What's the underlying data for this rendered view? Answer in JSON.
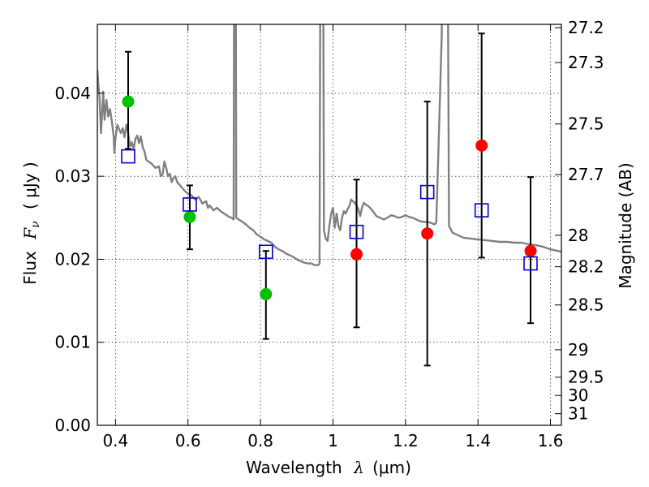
{
  "chart_data": {
    "type": "scatter",
    "xlabel": "Wavelength",
    "xlabel_symbol": "λ",
    "xlabel_unit": "(μm)",
    "ylabel": "Flux",
    "ylabel_symbol": "F",
    "ylabel_subscript": "ν",
    "ylabel_unit": "( μJy )",
    "y2label": "Magnitude (AB)",
    "xlim": [
      0.35,
      1.63
    ],
    "ylim": [
      0.0,
      0.0483
    ],
    "grid": true,
    "x_ticks": [
      {
        "value": 0.4,
        "label": "0.4"
      },
      {
        "value": 0.6,
        "label": "0.6"
      },
      {
        "value": 0.8,
        "label": "0.8"
      },
      {
        "value": 1.0,
        "label": "1"
      },
      {
        "value": 1.2,
        "label": "1.2"
      },
      {
        "value": 1.4,
        "label": "1.4"
      },
      {
        "value": 1.6,
        "label": "1.6"
      }
    ],
    "y_ticks": [
      {
        "value": 0.0,
        "label": "0.00"
      },
      {
        "value": 0.01,
        "label": "0.01"
      },
      {
        "value": 0.02,
        "label": "0.02"
      },
      {
        "value": 0.03,
        "label": "0.03"
      },
      {
        "value": 0.04,
        "label": "0.04"
      }
    ],
    "y2_ticks": [
      {
        "flux": 0.0479,
        "label": "27.2"
      },
      {
        "flux": 0.0437,
        "label": "27.3"
      },
      {
        "flux": 0.0363,
        "label": "27.5"
      },
      {
        "flux": 0.0302,
        "label": "27.7"
      },
      {
        "flux": 0.0229,
        "label": "28"
      },
      {
        "flux": 0.0191,
        "label": "28.2"
      },
      {
        "flux": 0.0145,
        "label": "28.5"
      },
      {
        "flux": 0.0091,
        "label": "29"
      },
      {
        "flux": 0.0058,
        "label": "29.5"
      },
      {
        "flux": 0.0036,
        "label": "30"
      },
      {
        "flux": 0.0014,
        "label": "31"
      }
    ],
    "series": [
      {
        "name": "model SED",
        "kind": "line",
        "color": "#808080",
        "points": [
          [
            0.35,
            0.0428
          ],
          [
            0.353,
            0.041
          ],
          [
            0.356,
            0.0395
          ],
          [
            0.36,
            0.0352
          ],
          [
            0.363,
            0.0374
          ],
          [
            0.366,
            0.0402
          ],
          [
            0.37,
            0.0368
          ],
          [
            0.375,
            0.0392
          ],
          [
            0.38,
            0.0372
          ],
          [
            0.385,
            0.0381
          ],
          [
            0.39,
            0.0366
          ],
          [
            0.395,
            0.0348
          ],
          [
            0.397,
            0.0328
          ],
          [
            0.4,
            0.0345
          ],
          [
            0.405,
            0.0362
          ],
          [
            0.41,
            0.0357
          ],
          [
            0.415,
            0.0352
          ],
          [
            0.42,
            0.0358
          ],
          [
            0.425,
            0.0347
          ],
          [
            0.43,
            0.0362
          ],
          [
            0.435,
            0.0352
          ],
          [
            0.44,
            0.0336
          ],
          [
            0.445,
            0.0341
          ],
          [
            0.45,
            0.0332
          ],
          [
            0.455,
            0.0345
          ],
          [
            0.46,
            0.0349
          ],
          [
            0.465,
            0.034
          ],
          [
            0.47,
            0.0348
          ],
          [
            0.475,
            0.0335
          ],
          [
            0.48,
            0.033
          ],
          [
            0.485,
            0.032
          ],
          [
            0.49,
            0.0318
          ],
          [
            0.5,
            0.0315
          ],
          [
            0.51,
            0.031
          ],
          [
            0.52,
            0.0312
          ],
          [
            0.525,
            0.03
          ],
          [
            0.53,
            0.0302
          ],
          [
            0.535,
            0.0318
          ],
          [
            0.54,
            0.031
          ],
          [
            0.545,
            0.03
          ],
          [
            0.55,
            0.0303
          ],
          [
            0.555,
            0.0293
          ],
          [
            0.56,
            0.0298
          ],
          [
            0.565,
            0.03
          ],
          [
            0.57,
            0.0293
          ],
          [
            0.58,
            0.0288
          ],
          [
            0.59,
            0.0283
          ],
          [
            0.6,
            0.0279
          ],
          [
            0.61,
            0.0277
          ],
          [
            0.62,
            0.0272
          ],
          [
            0.63,
            0.0275
          ],
          [
            0.64,
            0.0267
          ],
          [
            0.65,
            0.027
          ],
          [
            0.655,
            0.0262
          ],
          [
            0.66,
            0.0265
          ],
          [
            0.67,
            0.0259
          ],
          [
            0.68,
            0.0262
          ],
          [
            0.69,
            0.0258
          ],
          [
            0.7,
            0.0255
          ],
          [
            0.71,
            0.0252
          ],
          [
            0.72,
            0.025
          ],
          [
            0.726,
            0.0248
          ],
          [
            0.728,
            0.072
          ],
          [
            0.731,
            0.072
          ],
          [
            0.733,
            0.025
          ],
          [
            0.74,
            0.0248
          ],
          [
            0.75,
            0.0245
          ],
          [
            0.76,
            0.0242
          ],
          [
            0.77,
            0.0238
          ],
          [
            0.78,
            0.0235
          ],
          [
            0.79,
            0.023
          ],
          [
            0.8,
            0.0227
          ],
          [
            0.81,
            0.0224
          ],
          [
            0.82,
            0.0222
          ],
          [
            0.83,
            0.022
          ],
          [
            0.84,
            0.0215
          ],
          [
            0.85,
            0.0212
          ],
          [
            0.86,
            0.021
          ],
          [
            0.87,
            0.0207
          ],
          [
            0.88,
            0.0205
          ],
          [
            0.89,
            0.0203
          ],
          [
            0.9,
            0.02
          ],
          [
            0.91,
            0.0198
          ],
          [
            0.92,
            0.0196
          ],
          [
            0.93,
            0.0195
          ],
          [
            0.94,
            0.0195
          ],
          [
            0.95,
            0.0193
          ],
          [
            0.96,
            0.0193
          ],
          [
            0.963,
            0.0195
          ],
          [
            0.966,
            0.072
          ],
          [
            0.972,
            0.072
          ],
          [
            0.975,
            0.0235
          ],
          [
            0.98,
            0.0225
          ],
          [
            0.985,
            0.0222
          ],
          [
            0.99,
            0.024
          ],
          [
            0.995,
            0.0255
          ],
          [
            1.0,
            0.0262
          ],
          [
            1.005,
            0.0238
          ],
          [
            1.01,
            0.0255
          ],
          [
            1.015,
            0.024
          ],
          [
            1.02,
            0.0235
          ],
          [
            1.025,
            0.025
          ],
          [
            1.03,
            0.0258
          ],
          [
            1.035,
            0.0255
          ],
          [
            1.04,
            0.026
          ],
          [
            1.045,
            0.0264
          ],
          [
            1.05,
            0.0272
          ],
          [
            1.055,
            0.027
          ],
          [
            1.06,
            0.0268
          ],
          [
            1.065,
            0.0265
          ],
          [
            1.07,
            0.026
          ],
          [
            1.075,
            0.0252
          ],
          [
            1.08,
            0.0262
          ],
          [
            1.085,
            0.0268
          ],
          [
            1.09,
            0.0266
          ],
          [
            1.1,
            0.0263
          ],
          [
            1.11,
            0.0258
          ],
          [
            1.12,
            0.0252
          ],
          [
            1.13,
            0.025
          ],
          [
            1.14,
            0.0248
          ],
          [
            1.15,
            0.025
          ],
          [
            1.16,
            0.0253
          ],
          [
            1.17,
            0.0252
          ],
          [
            1.18,
            0.025
          ],
          [
            1.19,
            0.0251
          ],
          [
            1.2,
            0.0253
          ],
          [
            1.21,
            0.0251
          ],
          [
            1.22,
            0.025
          ],
          [
            1.23,
            0.0248
          ],
          [
            1.24,
            0.0246
          ],
          [
            1.25,
            0.0245
          ],
          [
            1.26,
            0.0245
          ],
          [
            1.27,
            0.0244
          ],
          [
            1.28,
            0.0242
          ],
          [
            1.285,
            0.0244
          ],
          [
            1.29,
            0.032
          ],
          [
            1.3,
            0.047
          ],
          [
            1.305,
            0.072
          ],
          [
            1.315,
            0.072
          ],
          [
            1.32,
            0.024
          ],
          [
            1.33,
            0.0232
          ],
          [
            1.34,
            0.023
          ],
          [
            1.35,
            0.0228
          ],
          [
            1.36,
            0.0226
          ],
          [
            1.38,
            0.0225
          ],
          [
            1.4,
            0.0224
          ],
          [
            1.42,
            0.0223
          ],
          [
            1.44,
            0.0222
          ],
          [
            1.46,
            0.0221
          ],
          [
            1.48,
            0.0221
          ],
          [
            1.5,
            0.022
          ],
          [
            1.52,
            0.022
          ],
          [
            1.54,
            0.0218
          ],
          [
            1.56,
            0.0217
          ],
          [
            1.58,
            0.0215
          ],
          [
            1.6,
            0.0212
          ],
          [
            1.62,
            0.021
          ],
          [
            1.63,
            0.0209
          ]
        ]
      },
      {
        "name": "green photometry",
        "kind": "points",
        "color": "#00c000",
        "x": [
          0.435,
          0.605,
          0.815
        ],
        "y": [
          0.039,
          0.0251,
          0.0158
        ],
        "err_low": [
          0.0333,
          0.0212,
          0.0104
        ],
        "err_high": [
          0.045,
          0.0289,
          0.021
        ]
      },
      {
        "name": "red photometry",
        "kind": "points",
        "color": "#ff0000",
        "x": [
          1.065,
          1.26,
          1.41,
          1.545
        ],
        "y": [
          0.0206,
          0.0231,
          0.0337,
          0.021
        ],
        "err_low": [
          0.0118,
          0.0072,
          0.0202,
          0.0123
        ],
        "err_high": [
          0.0296,
          0.039,
          0.0472,
          0.0299
        ]
      },
      {
        "name": "model fluxes",
        "kind": "open-squares",
        "color": "#0000cc",
        "x": [
          0.435,
          0.605,
          0.815,
          1.065,
          1.26,
          1.41,
          1.545
        ],
        "y": [
          0.0324,
          0.0266,
          0.0209,
          0.0233,
          0.0281,
          0.0259,
          0.0195
        ]
      }
    ]
  }
}
